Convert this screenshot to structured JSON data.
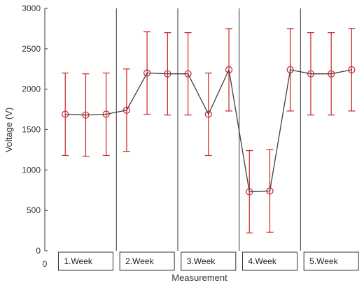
{
  "chart_data": {
    "type": "line",
    "xlabel": "Measurement",
    "ylabel": "Voltage (V)",
    "xlim": [
      0,
      15.5
    ],
    "ylim": [
      0,
      3000
    ],
    "y_ticks": [
      0,
      500,
      1000,
      1500,
      2000,
      2500,
      3000
    ],
    "x_ticks": [
      0
    ],
    "grid": false,
    "series": [
      {
        "x": [
          1,
          2,
          3,
          4,
          5,
          6,
          7,
          8,
          9,
          10,
          11,
          12,
          13,
          14,
          15
        ],
        "values": [
          1690,
          1680,
          1690,
          1740,
          2200,
          2190,
          2190,
          1690,
          2240,
          730,
          740,
          2240,
          2190,
          2190,
          2240
        ],
        "error": [
          510,
          510,
          510,
          510,
          510,
          510,
          510,
          510,
          510,
          510,
          510,
          510,
          510,
          510,
          510
        ],
        "line_color": "#404040",
        "marker_color": "#cc2222"
      }
    ],
    "dividers_x": [
      3.5,
      6.5,
      9.5,
      12.5
    ],
    "groups": [
      {
        "label": "1.Week",
        "x_center": 2
      },
      {
        "label": "2.Week",
        "x_center": 5
      },
      {
        "label": "3.Week",
        "x_center": 8
      },
      {
        "label": "4.Week",
        "x_center": 11
      },
      {
        "label": "5.Week",
        "x_center": 14
      }
    ]
  }
}
